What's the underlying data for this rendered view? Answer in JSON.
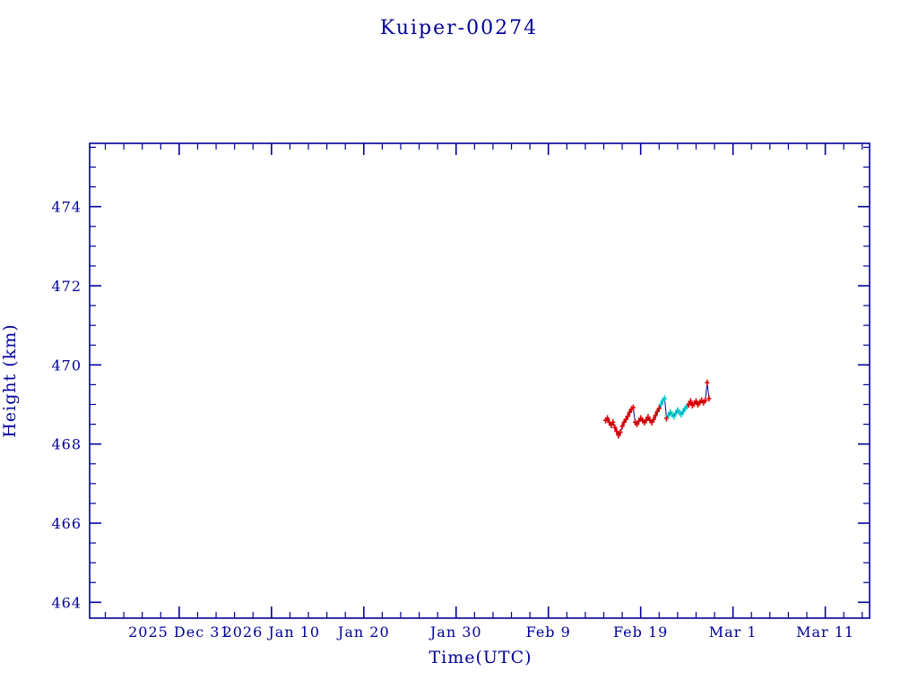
{
  "chart_data": {
    "type": "line",
    "title": "Kuiper-00274",
    "xlabel": "Time(UTC)",
    "ylabel": "Height (km)",
    "x_unit": "days since 2025 Dec 31 00:00 UTC",
    "x_range_days": [
      -9.7,
      74.8
    ],
    "y_range": [
      463.6,
      475.6
    ],
    "x_ticks": [
      {
        "day": 0,
        "label": "2025 Dec 31"
      },
      {
        "day": 10,
        "label": "2026 Jan 10"
      },
      {
        "day": 20,
        "label": "Jan 20"
      },
      {
        "day": 30,
        "label": "Jan 30"
      },
      {
        "day": 40,
        "label": "Feb 9"
      },
      {
        "day": 50,
        "label": "Feb 19"
      },
      {
        "day": 60,
        "label": "Mar 1"
      },
      {
        "day": 70,
        "label": "Mar 11"
      }
    ],
    "x_minor_tick_days": 2,
    "y_ticks": [
      464,
      466,
      468,
      470,
      472,
      474
    ],
    "y_minor_tick_km": 0.5,
    "grid": false,
    "legend": "none",
    "frame_color": "#000099",
    "line_color": "#000099",
    "marker_colors": {
      "r": "#dd0000",
      "c": "#00cbcb"
    },
    "points": [
      [
        46.2,
        468.6,
        "r"
      ],
      [
        46.4,
        468.65,
        "r"
      ],
      [
        46.6,
        468.55,
        "r"
      ],
      [
        46.8,
        468.48,
        "r"
      ],
      [
        47.0,
        468.55,
        "r"
      ],
      [
        47.2,
        468.42,
        "r"
      ],
      [
        47.4,
        468.32,
        "r"
      ],
      [
        47.6,
        468.22,
        "r"
      ],
      [
        47.8,
        468.3,
        "r"
      ],
      [
        48.0,
        468.45,
        "r"
      ],
      [
        48.2,
        468.55,
        "r"
      ],
      [
        48.4,
        468.62,
        "r"
      ],
      [
        48.6,
        468.7,
        "r"
      ],
      [
        48.8,
        468.8,
        "r"
      ],
      [
        49.0,
        468.88,
        "r"
      ],
      [
        49.2,
        468.92,
        "r"
      ],
      [
        49.4,
        468.55,
        "r"
      ],
      [
        49.6,
        468.5,
        "r"
      ],
      [
        49.8,
        468.58,
        "r"
      ],
      [
        50.0,
        468.65,
        "r"
      ],
      [
        50.2,
        468.6,
        "r"
      ],
      [
        50.4,
        468.55,
        "r"
      ],
      [
        50.6,
        468.6,
        "r"
      ],
      [
        50.8,
        468.68,
        "r"
      ],
      [
        51.0,
        468.6,
        "r"
      ],
      [
        51.2,
        468.55,
        "r"
      ],
      [
        51.4,
        468.62,
        "r"
      ],
      [
        51.6,
        468.72,
        "r"
      ],
      [
        51.8,
        468.82,
        "r"
      ],
      [
        52.0,
        468.9,
        "r"
      ],
      [
        52.2,
        469.0,
        "c"
      ],
      [
        52.4,
        469.1,
        "c"
      ],
      [
        52.6,
        469.15,
        "c"
      ],
      [
        52.8,
        468.65,
        "r"
      ],
      [
        53.0,
        468.72,
        "c"
      ],
      [
        53.2,
        468.8,
        "c"
      ],
      [
        53.4,
        468.75,
        "c"
      ],
      [
        53.6,
        468.7,
        "c"
      ],
      [
        53.8,
        468.78,
        "c"
      ],
      [
        54.0,
        468.85,
        "c"
      ],
      [
        54.2,
        468.8,
        "c"
      ],
      [
        54.4,
        468.75,
        "c"
      ],
      [
        54.6,
        468.82,
        "c"
      ],
      [
        54.8,
        468.9,
        "c"
      ],
      [
        55.0,
        468.95,
        "c"
      ],
      [
        55.2,
        469.0,
        "r"
      ],
      [
        55.4,
        469.08,
        "r"
      ],
      [
        55.6,
        468.98,
        "r"
      ],
      [
        55.8,
        469.02,
        "r"
      ],
      [
        56.0,
        469.08,
        "r"
      ],
      [
        56.2,
        469.0,
        "r"
      ],
      [
        56.4,
        469.05,
        "r"
      ],
      [
        56.6,
        469.1,
        "r"
      ],
      [
        56.8,
        469.05,
        "r"
      ],
      [
        57.0,
        469.1,
        "r"
      ],
      [
        57.2,
        469.55,
        "r"
      ],
      [
        57.4,
        469.15,
        "r"
      ]
    ]
  }
}
